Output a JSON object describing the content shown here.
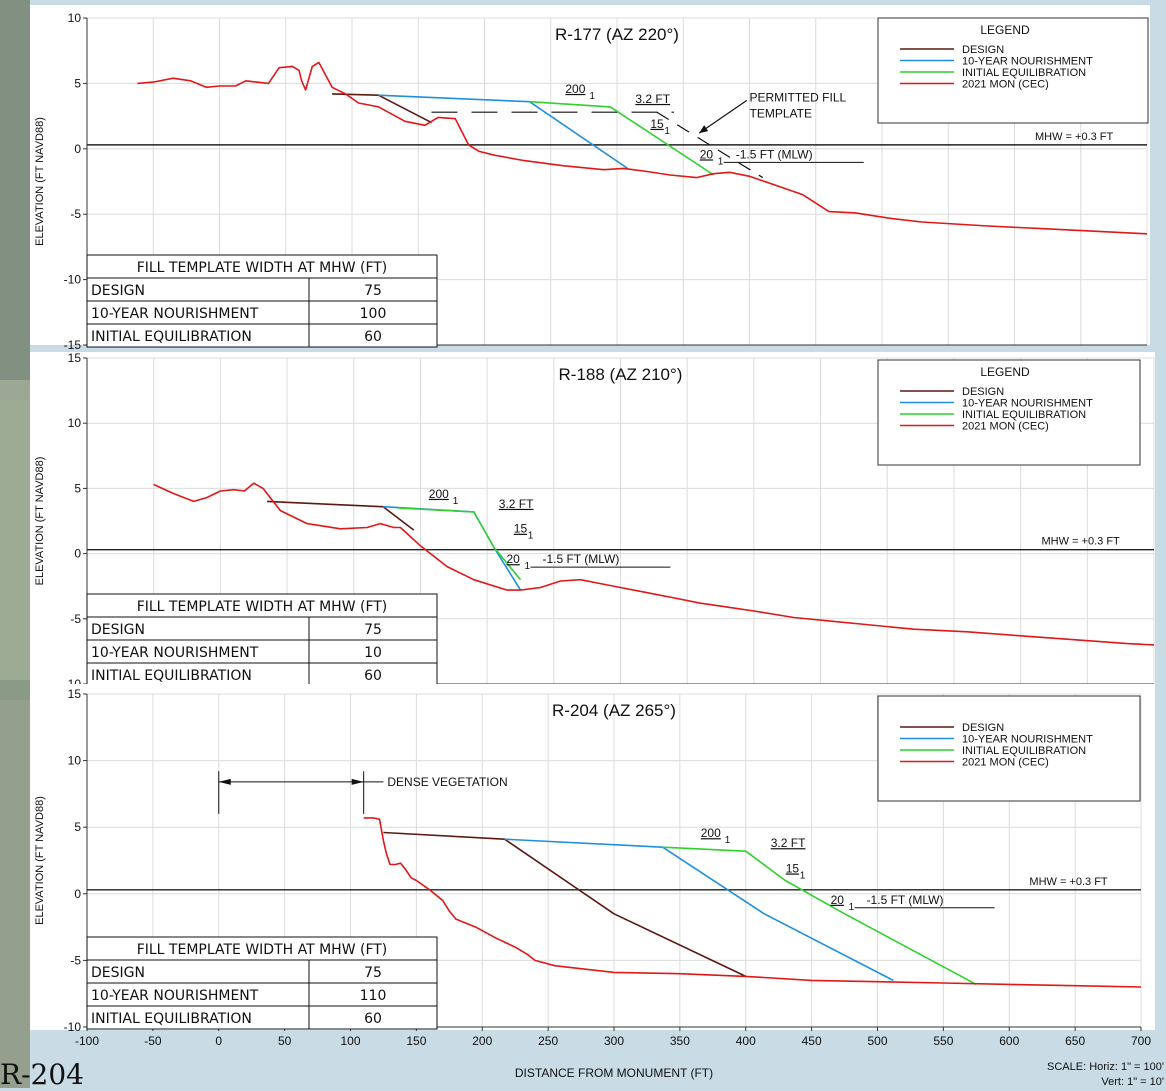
{
  "chart_data": [
    {
      "type": "line",
      "title": "R-177 (AZ 220°)",
      "ylabel": "ELEVATION (FT NAVD88)",
      "xlabel": "",
      "xlim": [
        -100,
        700
      ],
      "ylim": [
        -15,
        10
      ],
      "y_ticks": [
        "-15",
        "-10",
        "-5",
        "0",
        "5",
        "10"
      ],
      "x_ticks": [],
      "grid": true,
      "legend_title": "LEGEND",
      "legend": [
        "DESIGN",
        "10-YEAR NOURISHMENT",
        "INITIAL EQUILIBRATION",
        "2021 MON (CEC)"
      ],
      "legend_placement": "top-right",
      "mhw_label": "MHW = +0.3 FT",
      "mhw_value": 0.3,
      "slope_labels": {
        "s200": "200",
        "s15": "15",
        "s20": "20",
        "one": "1"
      },
      "berm_label": "3.2 FT",
      "mlw_label": "-1.5 FT (MLW)",
      "annotations": [
        "PERMITTED FILL",
        "TEMPLATE"
      ],
      "series": [
        {
          "name": "DESIGN",
          "x": [
            85,
            120,
            160
          ],
          "y": [
            4.2,
            4.1,
            2.0
          ]
        },
        {
          "name": "10-YEAR NOURISHMENT",
          "x": [
            120,
            234,
            308
          ],
          "y": [
            4.1,
            3.6,
            -1.5
          ]
        },
        {
          "name": "INITIAL EQUILIBRATION",
          "x": [
            234,
            295,
            373
          ],
          "y": [
            3.6,
            3.2,
            -2.0
          ]
        },
        {
          "name": "2021 MON (CEC)",
          "x": [
            -62,
            -50,
            -35,
            -22,
            -10,
            0,
            12,
            20,
            28,
            37,
            45,
            55,
            60,
            62,
            65,
            70,
            75,
            85,
            95,
            105,
            120,
            140,
            155,
            165,
            178,
            188,
            196,
            208,
            230,
            260,
            290,
            305,
            320,
            340,
            360,
            373,
            385,
            400,
            420,
            440,
            460,
            480,
            505,
            530,
            580,
            620,
            660,
            700
          ],
          "y": [
            5.0,
            5.1,
            5.4,
            5.2,
            4.7,
            4.8,
            4.8,
            5.2,
            5.1,
            5.0,
            6.2,
            6.3,
            6.0,
            5.2,
            4.5,
            6.3,
            6.6,
            4.7,
            4.2,
            3.5,
            3.2,
            2.1,
            1.8,
            2.4,
            2.3,
            0.3,
            -0.2,
            -0.5,
            -0.9,
            -1.3,
            -1.6,
            -1.5,
            -1.7,
            -2.0,
            -2.2,
            -1.9,
            -1.8,
            -2.1,
            -2.8,
            -3.5,
            -4.8,
            -4.9,
            -5.3,
            -5.6,
            -5.9,
            -6.1,
            -6.3,
            -6.5
          ]
        }
      ],
      "table": {
        "header": "FILL TEMPLATE WIDTH AT MHW (FT)",
        "rows": [
          [
            "DESIGN",
            "75"
          ],
          [
            "10-YEAR NOURISHMENT",
            "100"
          ],
          [
            "INITIAL EQUILIBRATION",
            "60"
          ]
        ]
      },
      "colors": {
        "design": "#5a1a12",
        "nourishment": "#1f8fe0",
        "equilibration": "#2ed12e",
        "monitoring": "#e01818",
        "grid": "#dcdcdc"
      }
    },
    {
      "type": "line",
      "title": "R-188 (AZ 210°)",
      "ylabel": "ELEVATION (FT NAVD88)",
      "xlabel": "",
      "xlim": [
        -100,
        700
      ],
      "ylim": [
        -10,
        15
      ],
      "y_ticks": [
        "-10",
        "-5",
        "0",
        "5",
        "10",
        "15"
      ],
      "x_ticks": [],
      "grid": true,
      "legend_title": "LEGEND",
      "legend": [
        "DESIGN",
        "10-YEAR NOURISHMENT",
        "INITIAL EQUILIBRATION",
        "2021 MON (CEC)"
      ],
      "legend_placement": "top-right",
      "mhw_label": "MHW = +0.3 FT",
      "mhw_value": 0.3,
      "slope_labels": {
        "s200": "200",
        "s15": "15",
        "s20": "20",
        "one": "1"
      },
      "berm_label": "3.2 FT",
      "mlw_label": "-1.5 FT (MLW)",
      "series": [
        {
          "name": "DESIGN",
          "x": [
            35,
            122,
            145
          ],
          "y": [
            4.0,
            3.6,
            1.8
          ]
        },
        {
          "name": "10-YEAR NOURISHMENT",
          "x": [
            122,
            190,
            205,
            225
          ],
          "y": [
            3.6,
            3.2,
            0.5,
            -2.8
          ]
        },
        {
          "name": "INITIAL EQUILIBRATION",
          "x": [
            133,
            190,
            205,
            225
          ],
          "y": [
            3.5,
            3.2,
            0.5,
            -2.0
          ]
        },
        {
          "name": "2021 MON (CEC)",
          "x": [
            -50,
            -35,
            -20,
            -10,
            0,
            10,
            18,
            25,
            32,
            38,
            45,
            65,
            90,
            110,
            120,
            130,
            135,
            150,
            170,
            190,
            215,
            225,
            240,
            255,
            270,
            285,
            300,
            320,
            340,
            360,
            380,
            400,
            430,
            460,
            480,
            520,
            560,
            600,
            640,
            680,
            700
          ],
          "y": [
            5.3,
            4.6,
            4.0,
            4.3,
            4.8,
            4.9,
            4.8,
            5.4,
            5.0,
            4.2,
            3.3,
            2.3,
            1.9,
            2.0,
            2.3,
            2.0,
            2.0,
            0.6,
            -1.0,
            -2.0,
            -2.8,
            -2.8,
            -2.6,
            -2.1,
            -2.0,
            -2.3,
            -2.6,
            -3.0,
            -3.4,
            -3.8,
            -4.1,
            -4.4,
            -4.9,
            -5.2,
            -5.4,
            -5.8,
            -6.0,
            -6.3,
            -6.6,
            -6.9,
            -7.0
          ]
        }
      ],
      "table": {
        "header": "FILL TEMPLATE WIDTH AT MHW (FT)",
        "rows": [
          [
            "DESIGN",
            "75"
          ],
          [
            "10-YEAR NOURISHMENT",
            "10"
          ],
          [
            "INITIAL EQUILIBRATION",
            "60"
          ]
        ]
      },
      "colors": {
        "design": "#5a1a12",
        "nourishment": "#1f8fe0",
        "equilibration": "#2ed12e",
        "monitoring": "#e01818",
        "grid": "#dcdcdc"
      }
    },
    {
      "type": "line",
      "title": "R-204 (AZ 265°)",
      "ylabel": "ELEVATION (FT NAVD88)",
      "xlabel": "DISTANCE FROM MONUMENT (FT)",
      "xlim": [
        -100,
        700
      ],
      "ylim": [
        -10,
        15
      ],
      "y_ticks": [
        "-10",
        "-5",
        "0",
        "5",
        "10",
        "15"
      ],
      "x_ticks": [
        "-100",
        "-50",
        "0",
        "50",
        "100",
        "150",
        "200",
        "250",
        "300",
        "350",
        "400",
        "450",
        "500",
        "550",
        "600",
        "650",
        "700"
      ],
      "grid": true,
      "legend_title": "",
      "legend": [
        "DESIGN",
        "10-YEAR NOURISHMENT",
        "INITIAL EQUILIBRATION",
        "2021 MON (CEC)"
      ],
      "legend_placement": "top-right",
      "mhw_label": "MHW = +0.3 FT",
      "mhw_value": 0.3,
      "slope_labels": {
        "s200": "200",
        "s15": "15",
        "s20": "20",
        "one": "1"
      },
      "berm_label": "3.2 FT",
      "mlw_label": "-1.5 FT (MLW)",
      "annotations": [
        "DENSE VEGETATION"
      ],
      "dense_vegetation_range": [
        0,
        110
      ],
      "series": [
        {
          "name": "DESIGN",
          "x": [
            125,
            217,
            300,
            400
          ],
          "y": [
            4.6,
            4.1,
            -1.5,
            -6.2
          ]
        },
        {
          "name": "10-YEAR NOURISHMENT",
          "x": [
            217,
            337,
            414,
            512
          ],
          "y": [
            4.1,
            3.5,
            -1.5,
            -6.5
          ]
        },
        {
          "name": "INITIAL EQUILIBRATION",
          "x": [
            337,
            400,
            430,
            475,
            575
          ],
          "y": [
            3.5,
            3.2,
            1.0,
            -1.5,
            -6.8
          ]
        },
        {
          "name": "2021 MON (CEC)",
          "x": [
            110,
            117,
            122,
            125,
            127,
            130,
            134,
            138,
            142,
            146,
            150,
            160,
            170,
            175,
            180,
            195,
            210,
            225,
            235,
            240,
            255,
            300,
            350,
            400,
            450,
            500,
            550,
            600,
            650,
            700
          ],
          "y": [
            5.7,
            5.7,
            5.6,
            4.0,
            3.1,
            2.2,
            2.2,
            2.3,
            1.8,
            1.2,
            1.0,
            0.3,
            -0.5,
            -1.3,
            -1.9,
            -2.5,
            -3.3,
            -4.0,
            -4.6,
            -5.0,
            -5.4,
            -5.9,
            -6.0,
            -6.2,
            -6.5,
            -6.6,
            -6.7,
            -6.8,
            -6.9,
            -7.0
          ]
        }
      ],
      "table": {
        "header": "FILL TEMPLATE WIDTH AT MHW (FT)",
        "rows": [
          [
            "DESIGN",
            "75"
          ],
          [
            "10-YEAR NOURISHMENT",
            "110"
          ],
          [
            "INITIAL EQUILIBRATION",
            "60"
          ]
        ]
      },
      "colors": {
        "design": "#5a1a12",
        "nourishment": "#1f8fe0",
        "equilibration": "#2ed12e",
        "monitoring": "#e01818",
        "grid": "#dcdcdc"
      }
    }
  ],
  "scale_note": {
    "line1": "SCALE:  Horiz: 1\" = 100'",
    "line2": "Vert:  1\" = 10'"
  },
  "background_text": {
    "bottom_left": "R-204"
  }
}
